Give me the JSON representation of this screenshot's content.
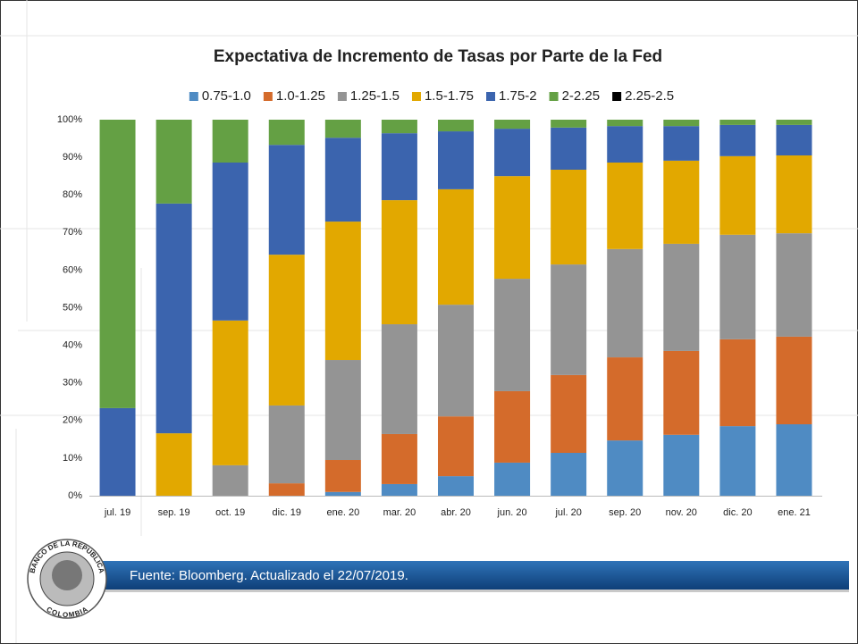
{
  "chart_data": {
    "type": "stacked_bar",
    "title": "Expectativa de Incremento de Tasas por Parte de la Fed",
    "categories": [
      "jul. 19",
      "sep. 19",
      "oct. 19",
      "dic. 19",
      "ene. 20",
      "mar. 20",
      "abr. 20",
      "jun. 20",
      "jul. 20",
      "sep. 20",
      "nov. 20",
      "dic. 20",
      "ene. 21"
    ],
    "series": [
      {
        "name": "0.75-1.0",
        "color": "#4f8bc3",
        "values": [
          0,
          0,
          0,
          0,
          1.0,
          3.1,
          5.2,
          8.8,
          11.4,
          14.7,
          16.2,
          18.5,
          19.0
        ]
      },
      {
        "name": "1.0-1.25",
        "color": "#d46b2b",
        "values": [
          0,
          0,
          0,
          3.3,
          8.5,
          13.3,
          15.9,
          19.0,
          20.7,
          22.1,
          22.3,
          23.1,
          23.3
        ]
      },
      {
        "name": "1.25-1.5",
        "color": "#949494",
        "values": [
          0,
          0,
          8.1,
          20.7,
          26.6,
          29.2,
          29.7,
          29.9,
          29.4,
          28.8,
          28.5,
          27.8,
          27.5
        ]
      },
      {
        "name": "1.5-1.75",
        "color": "#e2a800",
        "values": [
          0,
          16.6,
          38.5,
          40.1,
          36.8,
          33.0,
          30.7,
          27.3,
          25.2,
          23.0,
          22.1,
          20.9,
          20.7
        ]
      },
      {
        "name": "1.75-2",
        "color": "#3b64ae",
        "values": [
          23.3,
          61.1,
          42.0,
          29.2,
          22.3,
          17.8,
          15.4,
          12.6,
          11.2,
          9.7,
          9.2,
          8.3,
          8.1
        ]
      },
      {
        "name": "2-2.25",
        "color": "#64a044",
        "values": [
          76.7,
          22.3,
          11.4,
          6.7,
          4.8,
          3.6,
          3.1,
          2.4,
          2.1,
          1.7,
          1.7,
          1.4,
          1.4
        ]
      },
      {
        "name": "2.25-2.5",
        "color": "#000000",
        "values": [
          0,
          0,
          0,
          0,
          0,
          0,
          0,
          0,
          0,
          0,
          0,
          0,
          0
        ]
      }
    ],
    "ylim": [
      0,
      100
    ],
    "yticks": [
      {
        "value": 0,
        "label": "0%"
      },
      {
        "value": 10,
        "label": "10%"
      },
      {
        "value": 20,
        "label": "20%"
      },
      {
        "value": 30,
        "label": "30%"
      },
      {
        "value": 40,
        "label": "40%"
      },
      {
        "value": 50,
        "label": "50%"
      },
      {
        "value": 60,
        "label": "60%"
      },
      {
        "value": 70,
        "label": "70%"
      },
      {
        "value": 80,
        "label": "80%"
      },
      {
        "value": 90,
        "label": "90%"
      },
      {
        "value": 100,
        "label": "100%"
      }
    ],
    "legend": "top",
    "grid": false
  },
  "footer": {
    "source": "Fuente: Bloomberg. Actualizado el 22/07/2019."
  },
  "logo": {
    "top": "BANCO DE LA REPUBLICA",
    "bottom": "COLOMBIA"
  }
}
